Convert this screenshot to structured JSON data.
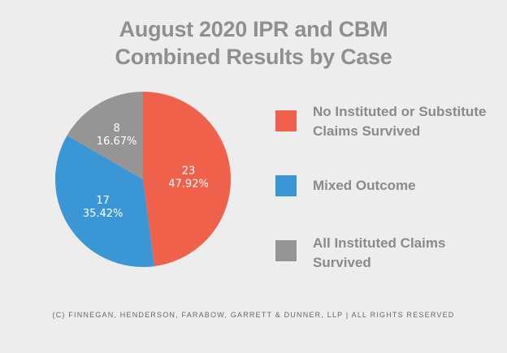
{
  "chart_data": {
    "type": "pie",
    "title_lines": [
      "August 2020 IPR and CBM",
      "Combined Results by Case"
    ],
    "slices": [
      {
        "name": "No Instituted or Substitute Claims Survived",
        "value": 23,
        "percent_label": "47.92%",
        "color": "#f0614b"
      },
      {
        "name": "Mixed Outcome",
        "value": 17,
        "percent_label": "35.42%",
        "color": "#3b96d5"
      },
      {
        "name": "All Instituted Claims Survived",
        "value": 8,
        "percent_label": "16.67%",
        "color": "#959595"
      }
    ],
    "legend_position": "right",
    "start_angle": "12 o'clock",
    "direction": "clockwise"
  },
  "legend": {
    "items": [
      {
        "line1": "No Instituted or Substitute",
        "line2": "Claims Survived",
        "color": "#f0614b"
      },
      {
        "line1": "Mixed Outcome",
        "line2": "",
        "color": "#3b96d5"
      },
      {
        "line1": "All Instituted Claims",
        "line2": "Survived",
        "color": "#959595"
      }
    ]
  },
  "footer": "(C) FINNEGAN, HENDERSON, FARABOW, GARRETT & DUNNER, LLP | ALL RIGHTS RESERVED"
}
